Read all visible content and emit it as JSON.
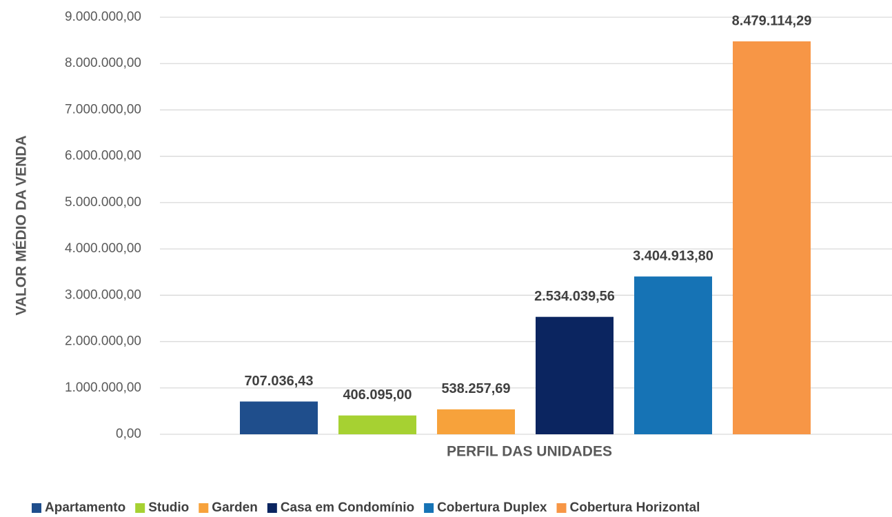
{
  "chart_data": {
    "type": "bar",
    "x_label": "PERFIL DAS UNIDADES",
    "y_label": "VALOR MÉDIO DA VENDA",
    "categories": [
      null
    ],
    "series": [
      {
        "name": "Apartamento",
        "color": "#1f4e8c",
        "values": [
          707036.43
        ],
        "value_labels": [
          "707.036,43"
        ]
      },
      {
        "name": "Studio",
        "color": "#a6d132",
        "values": [
          406095.0
        ],
        "value_labels": [
          "406.095,00"
        ]
      },
      {
        "name": "Garden",
        "color": "#f7a23b",
        "values": [
          538257.69
        ],
        "value_labels": [
          "538.257,69"
        ]
      },
      {
        "name": "Casa em Condomínio",
        "color": "#0b2560",
        "values": [
          2534039.56
        ],
        "value_labels": [
          "2.534.039,56"
        ]
      },
      {
        "name": "Cobertura Duplex",
        "color": "#1673b5",
        "values": [
          3404913.8
        ],
        "value_labels": [
          "3.404.913,80"
        ]
      },
      {
        "name": "Cobertura Horizontal",
        "color": "#f79646",
        "values": [
          8479114.29
        ],
        "value_labels": [
          "8.479.114,29"
        ]
      }
    ],
    "ylim": [
      0,
      9000000
    ],
    "yticks": [
      {
        "value": 0,
        "label": "0,00"
      },
      {
        "value": 1000000,
        "label": "1.000.000,00"
      },
      {
        "value": 2000000,
        "label": "2.000.000,00"
      },
      {
        "value": 3000000,
        "label": "3.000.000,00"
      },
      {
        "value": 4000000,
        "label": "4.000.000,00"
      },
      {
        "value": 5000000,
        "label": "5.000.000,00"
      },
      {
        "value": 6000000,
        "label": "6.000.000,00"
      },
      {
        "value": 7000000,
        "label": "7.000.000,00"
      },
      {
        "value": 8000000,
        "label": "8.000.000,00"
      },
      {
        "value": 9000000,
        "label": "9.000.000,00"
      }
    ],
    "grid": true,
    "legend": "bottom"
  }
}
